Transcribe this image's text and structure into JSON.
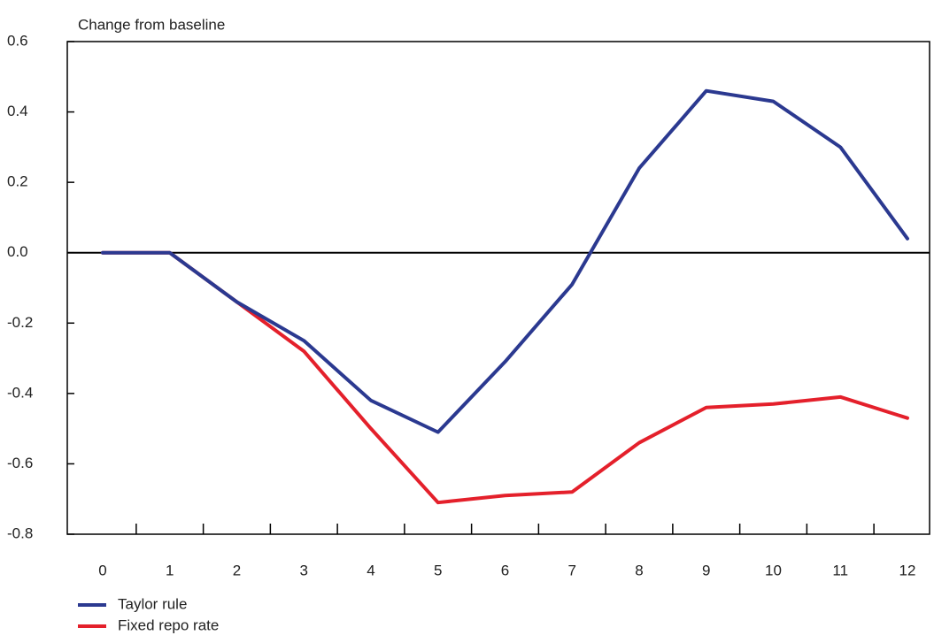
{
  "chart_data": {
    "type": "line",
    "y_label": "Change from baseline",
    "categories": [
      "0",
      "1",
      "2",
      "3",
      "4",
      "5",
      "6",
      "7",
      "8",
      "9",
      "10",
      "11",
      "12"
    ],
    "series": [
      {
        "name": "Taylor rule",
        "color": "#2b3990",
        "values": [
          0,
          0,
          -0.14,
          -0.25,
          -0.42,
          -0.51,
          -0.31,
          -0.09,
          0.24,
          0.46,
          0.43,
          0.3,
          0.04
        ]
      },
      {
        "name": "Fixed repo rate",
        "color": "#e4202b",
        "values": [
          0,
          0,
          -0.14,
          -0.28,
          -0.5,
          -0.71,
          -0.69,
          -0.68,
          -0.54,
          -0.44,
          -0.43,
          -0.41,
          -0.47
        ]
      }
    ],
    "ylim": [
      -0.8,
      0.6
    ],
    "yticks": [
      -0.8,
      -0.6,
      -0.4,
      -0.2,
      {
        "value": 0,
        "label": "0.0"
      },
      0.2,
      0.4,
      0.6
    ]
  }
}
